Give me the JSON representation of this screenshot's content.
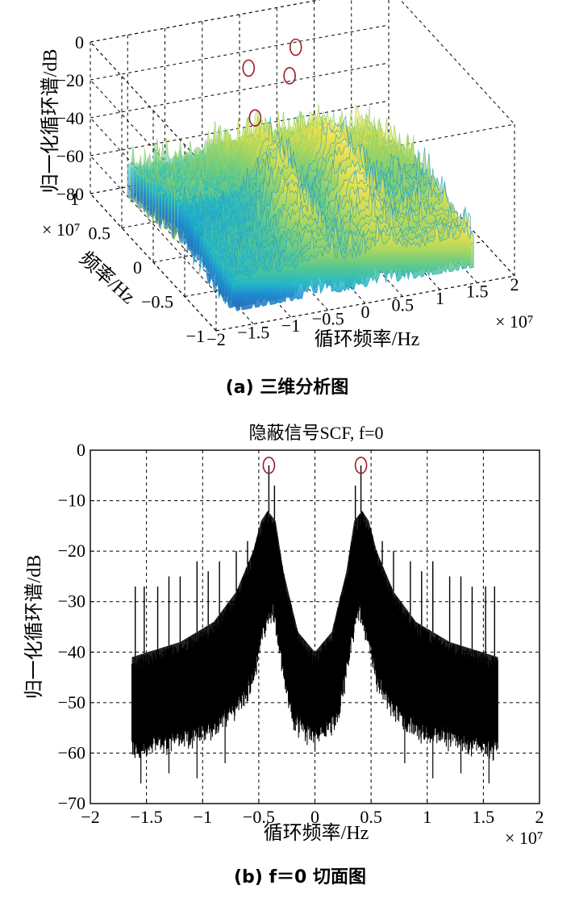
{
  "chart_data": [
    {
      "type": "surface",
      "caption": "(a) 三维分析图",
      "zlabel": "归一化循环谱/dB",
      "ylabel": "频率/Hz",
      "xlabel": "循环频率/Hz",
      "x_exponent": "× 10⁷",
      "y_exponent": "× 10⁷",
      "zticks": [
        "0",
        "−20",
        "−40",
        "−60",
        "−80"
      ],
      "yticks": [
        "1",
        "0.5",
        "0",
        "−0.5",
        "−1"
      ],
      "xticks": [
        "−2",
        "−1.5",
        "−1",
        "−0.5",
        "0",
        "0.5",
        "1",
        "1.5",
        "2"
      ],
      "xlim": [
        -2,
        2
      ],
      "ylim": [
        -1,
        1
      ],
      "zlim": [
        -80,
        0
      ],
      "colormap": "parula",
      "grid": true,
      "highlighted_peaks": 4
    },
    {
      "type": "line",
      "title": "隐蔽信号SCF, f=0",
      "caption": "(b) f＝0 切面图",
      "xlabel": "循环频率/Hz",
      "ylabel": "归一化循环谱/dB",
      "x_exponent": "× 10⁷",
      "xlim": [
        -2,
        2
      ],
      "ylim": [
        -70,
        0
      ],
      "xticks": [
        "−2",
        "−1.5",
        "−1",
        "−0.5",
        "0",
        "0.5",
        "1",
        "1.5",
        "2"
      ],
      "yticks": [
        "0",
        "−10",
        "−20",
        "−30",
        "−40",
        "−50",
        "−60",
        "−70"
      ],
      "grid": true,
      "series_color": "#000000",
      "envelope_upper": [
        {
          "x": -1.63,
          "y": -41
        },
        {
          "x": -1.2,
          "y": -38
        },
        {
          "x": -0.9,
          "y": -34
        },
        {
          "x": -0.7,
          "y": -28
        },
        {
          "x": -0.55,
          "y": -20
        },
        {
          "x": -0.48,
          "y": -14
        },
        {
          "x": -0.42,
          "y": -12
        },
        {
          "x": -0.35,
          "y": -14
        },
        {
          "x": -0.28,
          "y": -24
        },
        {
          "x": -0.15,
          "y": -36
        },
        {
          "x": 0,
          "y": -40
        },
        {
          "x": 0.15,
          "y": -36
        },
        {
          "x": 0.28,
          "y": -24
        },
        {
          "x": 0.35,
          "y": -14
        },
        {
          "x": 0.42,
          "y": -12
        },
        {
          "x": 0.48,
          "y": -14
        },
        {
          "x": 0.55,
          "y": -20
        },
        {
          "x": 0.7,
          "y": -28
        },
        {
          "x": 0.9,
          "y": -34
        },
        {
          "x": 1.2,
          "y": -38
        },
        {
          "x": 1.63,
          "y": -41
        }
      ],
      "envelope_lower": [
        {
          "x": -1.63,
          "y": -58
        },
        {
          "x": -1.2,
          "y": -56
        },
        {
          "x": -0.9,
          "y": -54
        },
        {
          "x": -0.7,
          "y": -50
        },
        {
          "x": -0.55,
          "y": -44
        },
        {
          "x": -0.45,
          "y": -34
        },
        {
          "x": -0.38,
          "y": -30
        },
        {
          "x": -0.3,
          "y": -40
        },
        {
          "x": -0.2,
          "y": -52
        },
        {
          "x": 0,
          "y": -56
        },
        {
          "x": 0.2,
          "y": -52
        },
        {
          "x": 0.3,
          "y": -40
        },
        {
          "x": 0.38,
          "y": -30
        },
        {
          "x": 0.45,
          "y": -34
        },
        {
          "x": 0.55,
          "y": -44
        },
        {
          "x": 0.7,
          "y": -50
        },
        {
          "x": 0.9,
          "y": -54
        },
        {
          "x": 1.2,
          "y": -56
        },
        {
          "x": 1.63,
          "y": -58
        }
      ],
      "spikes": [
        {
          "x": -0.41,
          "y": -3
        },
        {
          "x": 0.41,
          "y": -3
        },
        {
          "x": -0.36,
          "y": -7
        },
        {
          "x": 0.36,
          "y": -7
        },
        {
          "x": -1.6,
          "y": -27
        },
        {
          "x": -1.52,
          "y": -27
        },
        {
          "x": -1.4,
          "y": -27
        },
        {
          "x": -1.3,
          "y": -25
        },
        {
          "x": -1.2,
          "y": -25
        },
        {
          "x": -1.05,
          "y": -22
        },
        {
          "x": -0.95,
          "y": -24
        },
        {
          "x": -0.85,
          "y": -22
        },
        {
          "x": -0.7,
          "y": -20
        },
        {
          "x": -0.6,
          "y": -18
        },
        {
          "x": -0.5,
          "y": -17
        },
        {
          "x": 0.5,
          "y": -17
        },
        {
          "x": 0.6,
          "y": -18
        },
        {
          "x": 0.7,
          "y": -20
        },
        {
          "x": 0.85,
          "y": -22
        },
        {
          "x": 0.95,
          "y": -24
        },
        {
          "x": 1.05,
          "y": -22
        },
        {
          "x": 1.2,
          "y": -25
        },
        {
          "x": 1.3,
          "y": -25
        },
        {
          "x": 1.4,
          "y": -27
        },
        {
          "x": 1.52,
          "y": -27
        },
        {
          "x": 1.6,
          "y": -27
        }
      ],
      "dips": [
        {
          "x": -1.55,
          "y": -66
        },
        {
          "x": -1.3,
          "y": -64
        },
        {
          "x": -1.05,
          "y": -65
        },
        {
          "x": -0.8,
          "y": -62
        },
        {
          "x": 0.8,
          "y": -62
        },
        {
          "x": 1.05,
          "y": -65
        },
        {
          "x": 1.3,
          "y": -64
        },
        {
          "x": 1.55,
          "y": -66
        }
      ],
      "highlighted_peaks": [
        {
          "x": -0.41,
          "y": -3
        },
        {
          "x": 0.41,
          "y": -3
        }
      ]
    }
  ]
}
